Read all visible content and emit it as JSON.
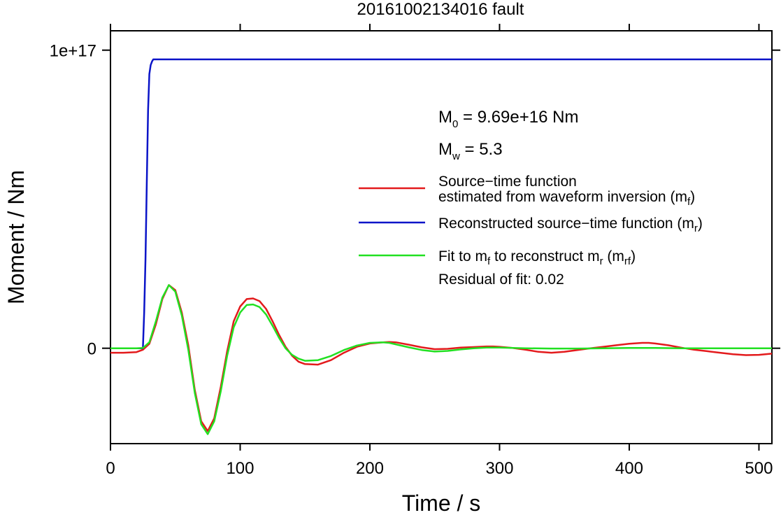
{
  "chart_data": {
    "type": "line",
    "title": "20161002134016 fault",
    "xlabel": "Time / s",
    "ylabel": "Moment / Nm",
    "xlim": [
      0,
      510
    ],
    "ylim": [
      -3.2e+16,
      1.065e+17
    ],
    "x_ticks": [
      {
        "value": 0,
        "label": "0"
      },
      {
        "value": 100,
        "label": "100"
      },
      {
        "value": 200,
        "label": "200"
      },
      {
        "value": 300,
        "label": "300"
      },
      {
        "value": 400,
        "label": "400"
      },
      {
        "value": 500,
        "label": "500"
      }
    ],
    "y_ticks": [
      {
        "value": 0,
        "label": "0"
      },
      {
        "value": 1e+17,
        "label": "1e+17"
      }
    ],
    "grid": false,
    "annotations": {
      "m0": {
        "main": "M",
        "sub": "0",
        "rest": " = 9.69e+16 Nm"
      },
      "mw": {
        "main": "M",
        "sub": "w",
        "rest": " = 5.3"
      },
      "residual": "Residual of fit: 0.02"
    },
    "legend": {
      "placement": "right",
      "entries": [
        {
          "line1": "Source−time function",
          "line2": "estimated from waveform inversion (m",
          "sub": "f",
          "tail": ")",
          "color": "#e31a1c"
        },
        {
          "line1": "Reconstructed source−time function (m",
          "sub": "r",
          "tail": ")",
          "color": "#0a14c8"
        },
        {
          "line1": "Fit to m",
          "sub": "f",
          "mid": " to reconstruct m",
          "sub2": "r",
          "mid2": " (m",
          "sub3": "rf",
          "tail": ")",
          "color": "#22e022"
        }
      ]
    },
    "series": [
      {
        "name": "Source−time function estimated from waveform inversion (mf)",
        "color": "#e31a1c",
        "x": [
          0,
          10,
          20,
          25,
          30,
          35,
          40,
          45,
          50,
          55,
          60,
          65,
          70,
          75,
          80,
          85,
          90,
          95,
          100,
          105,
          110,
          115,
          120,
          125,
          130,
          135,
          140,
          145,
          150,
          160,
          170,
          180,
          190,
          200,
          210,
          215,
          220,
          230,
          240,
          250,
          260,
          270,
          280,
          290,
          295,
          300,
          310,
          320,
          330,
          340,
          350,
          360,
          370,
          380,
          390,
          400,
          410,
          415,
          420,
          430,
          440,
          450,
          460,
          470,
          480,
          490,
          500,
          510
        ],
        "y": [
          -1500000000000000.0,
          -1500000000000000.0,
          -1300000000000000.0,
          -500000000000000.0,
          1500000000000000.0,
          8000000000000000.0,
          1.65e+16,
          2.12e+16,
          1.95e+16,
          1.2e+16,
          1000000000000000.0,
          -1.4e+16,
          -2.45e+16,
          -2.78e+16,
          -2.35e+16,
          -1.3e+16,
          -1000000000000000.0,
          9000000000000000.0,
          1.4e+16,
          1.65e+16,
          1.67e+16,
          1.58e+16,
          1.32e+16,
          9000000000000000.0,
          4500000000000000.0,
          500000000000000.0,
          -2500000000000000.0,
          -4500000000000000.0,
          -5300000000000000.0,
          -5500000000000000.0,
          -4000000000000000.0,
          -1500000000000000.0,
          500000000000000.0,
          1600000000000000.0,
          2000000000000000.0,
          2100000000000000.0,
          2000000000000000.0,
          1200000000000000.0,
          300000000000000.0,
          -300000000000000.0,
          -200000000000000.0,
          200000000000000.0,
          400000000000000.0,
          600000000000000.0,
          600000000000000.0,
          500000000000000.0,
          100000000000000.0,
          -500000000000000.0,
          -1200000000000000.0,
          -1500000000000000.0,
          -1200000000000000.0,
          -600000000000000.0,
          0,
          500000000000000.0,
          1000000000000000.0,
          1500000000000000.0,
          1800000000000000.0,
          1800000000000000.0,
          1600000000000000.0,
          1000000000000000.0,
          200000000000000.0,
          -500000000000000.0,
          -1000000000000000.0,
          -1500000000000000.0,
          -2000000000000000.0,
          -2300000000000000.0,
          -2200000000000000.0,
          -1800000000000000.0
        ]
      },
      {
        "name": "Reconstructed source−time function (mr)",
        "color": "#0a14c8",
        "x": [
          0,
          25,
          26,
          27,
          28,
          29,
          30,
          31,
          32,
          33,
          35,
          40,
          60,
          100,
          200,
          300,
          400,
          510
        ],
        "y": [
          0,
          0,
          1.2e+16,
          3e+16,
          5.5e+16,
          8e+16,
          9.2e+16,
          9.5e+16,
          9.62e+16,
          9.69e+16,
          9.69e+16,
          9.69e+16,
          9.69e+16,
          9.69e+16,
          9.69e+16,
          9.69e+16,
          9.69e+16,
          9.69e+16
        ]
      },
      {
        "name": "Fit to mf to reconstruct mr (mrf)",
        "color": "#22e022",
        "x": [
          0,
          10,
          20,
          25,
          30,
          35,
          40,
          45,
          50,
          55,
          60,
          65,
          70,
          75,
          80,
          85,
          90,
          95,
          100,
          105,
          110,
          115,
          120,
          125,
          130,
          135,
          140,
          145,
          150,
          160,
          170,
          180,
          190,
          200,
          210,
          215,
          220,
          230,
          240,
          250,
          260,
          270,
          280,
          290,
          300,
          320,
          340,
          360,
          380,
          400,
          420,
          440,
          460,
          480,
          500,
          510
        ],
        "y": [
          0,
          0,
          0,
          100000000000000.0,
          2000000000000000.0,
          9000000000000000.0,
          1.7e+16,
          2.12e+16,
          1.9e+16,
          1.1e+16,
          -500000000000000.0,
          -1.5e+16,
          -2.55e+16,
          -2.88e+16,
          -2.45e+16,
          -1.45e+16,
          -2500000000000000.0,
          7000000000000000.0,
          1.2e+16,
          1.45e+16,
          1.47e+16,
          1.38e+16,
          1.13e+16,
          7500000000000000.0,
          3500000000000000.0,
          0,
          -2200000000000000.0,
          -3500000000000000.0,
          -4200000000000000.0,
          -4000000000000000.0,
          -2600000000000000.0,
          -600000000000000.0,
          900000000000000.0,
          1800000000000000.0,
          2000000000000000.0,
          1800000000000000.0,
          1300000000000000.0,
          300000000000000.0,
          -600000000000000.0,
          -1100000000000000.0,
          -900000000000000.0,
          -400000000000000.0,
          0,
          200000000000000.0,
          200000000000000.0,
          0,
          -100000000000000.0,
          -100000000000000.0,
          0,
          100000000000000.0,
          100000000000000.0,
          0,
          0,
          0,
          0,
          0
        ]
      }
    ]
  }
}
